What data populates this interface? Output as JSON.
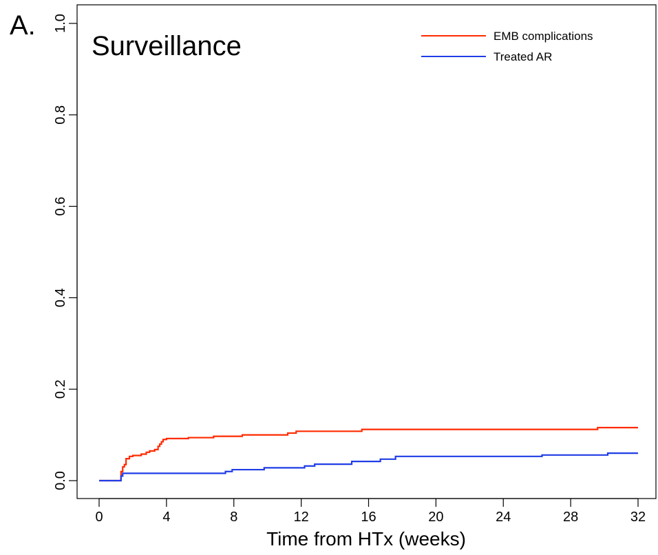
{
  "panel_label": "A.",
  "chart_data": {
    "type": "line",
    "title": "Surveillance",
    "xlabel": "Time from HTx (weeks)",
    "ylabel": "",
    "xlim": [
      0,
      32
    ],
    "ylim": [
      0,
      1
    ],
    "x_ticks": [
      0,
      4,
      8,
      12,
      16,
      20,
      24,
      28,
      32
    ],
    "y_ticks": [
      0.0,
      0.2,
      0.4,
      0.6,
      0.8,
      1.0
    ],
    "y_tick_labels": [
      "0.0",
      "0.2",
      "0.4",
      "0.6",
      "0.8",
      "1.0"
    ],
    "grid": false,
    "legend_position": "top-right",
    "series": [
      {
        "name": "EMB complications",
        "color": "#ff2a00",
        "step": true,
        "points": [
          [
            0,
            0.0
          ],
          [
            1.3,
            0.0
          ],
          [
            1.3,
            0.02
          ],
          [
            1.4,
            0.03
          ],
          [
            1.5,
            0.035
          ],
          [
            1.6,
            0.048
          ],
          [
            1.8,
            0.053
          ],
          [
            2.0,
            0.055
          ],
          [
            2.5,
            0.058
          ],
          [
            2.8,
            0.062
          ],
          [
            3.0,
            0.065
          ],
          [
            3.3,
            0.068
          ],
          [
            3.5,
            0.075
          ],
          [
            3.6,
            0.08
          ],
          [
            3.7,
            0.085
          ],
          [
            3.8,
            0.09
          ],
          [
            4.0,
            0.092
          ],
          [
            5.3,
            0.094
          ],
          [
            6.8,
            0.097
          ],
          [
            8.5,
            0.1
          ],
          [
            11.2,
            0.104
          ],
          [
            11.7,
            0.108
          ],
          [
            15.6,
            0.112
          ],
          [
            29.6,
            0.116
          ],
          [
            32,
            0.116
          ]
        ]
      },
      {
        "name": "Treated AR",
        "color": "#1f3ce6",
        "step": true,
        "points": [
          [
            0,
            0.0
          ],
          [
            1.3,
            0.0
          ],
          [
            1.3,
            0.01
          ],
          [
            1.4,
            0.016
          ],
          [
            7.5,
            0.02
          ],
          [
            7.9,
            0.024
          ],
          [
            9.8,
            0.028
          ],
          [
            12.2,
            0.032
          ],
          [
            12.8,
            0.036
          ],
          [
            15.0,
            0.042
          ],
          [
            16.7,
            0.047
          ],
          [
            17.6,
            0.053
          ],
          [
            26.3,
            0.056
          ],
          [
            30.2,
            0.06
          ],
          [
            32,
            0.06
          ]
        ]
      }
    ]
  }
}
